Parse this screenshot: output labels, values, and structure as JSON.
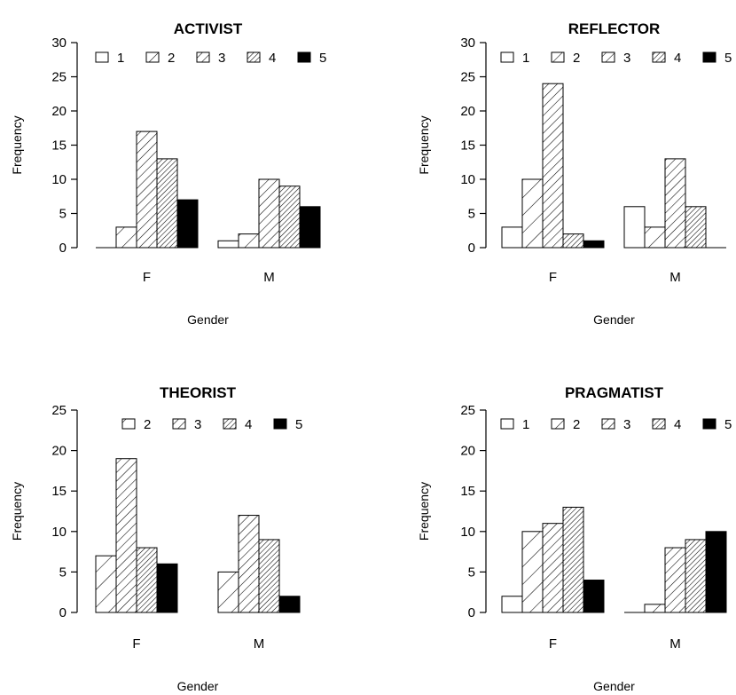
{
  "chart_data": [
    {
      "type": "bar",
      "title": "ACTIVIST",
      "xlabel": "Gender",
      "ylabel": "Frequency",
      "categories": [
        "F",
        "M"
      ],
      "ylim": [
        0,
        30
      ],
      "yticks": [
        0,
        5,
        10,
        15,
        20,
        25,
        30
      ],
      "legend_position": "top",
      "series": [
        {
          "name": "1",
          "pattern": "open",
          "values": [
            0,
            1
          ]
        },
        {
          "name": "2",
          "pattern": "sparse-hatch",
          "values": [
            3,
            2
          ]
        },
        {
          "name": "3",
          "pattern": "medium-hatch",
          "values": [
            17,
            10
          ]
        },
        {
          "name": "4",
          "pattern": "dense-hatch",
          "values": [
            13,
            9
          ]
        },
        {
          "name": "5",
          "pattern": "solid",
          "values": [
            7,
            6
          ]
        }
      ]
    },
    {
      "type": "bar",
      "title": "REFLECTOR",
      "xlabel": "Gender",
      "ylabel": "Frequency",
      "categories": [
        "F",
        "M"
      ],
      "ylim": [
        0,
        30
      ],
      "yticks": [
        0,
        5,
        10,
        15,
        20,
        25,
        30
      ],
      "legend_position": "top",
      "series": [
        {
          "name": "1",
          "pattern": "open",
          "values": [
            3,
            6
          ]
        },
        {
          "name": "2",
          "pattern": "sparse-hatch",
          "values": [
            10,
            3
          ]
        },
        {
          "name": "3",
          "pattern": "medium-hatch",
          "values": [
            24,
            13
          ]
        },
        {
          "name": "4",
          "pattern": "dense-hatch",
          "values": [
            2,
            6
          ]
        },
        {
          "name": "5",
          "pattern": "solid",
          "values": [
            1,
            0
          ]
        }
      ]
    },
    {
      "type": "bar",
      "title": "THEORIST",
      "xlabel": "Gender",
      "ylabel": "Frequency",
      "categories": [
        "F",
        "M"
      ],
      "ylim": [
        0,
        25
      ],
      "yticks": [
        0,
        5,
        10,
        15,
        20,
        25
      ],
      "legend_position": "top",
      "series": [
        {
          "name": "2",
          "pattern": "sparse-hatch",
          "values": [
            7,
            5
          ]
        },
        {
          "name": "3",
          "pattern": "medium-hatch",
          "values": [
            19,
            12
          ]
        },
        {
          "name": "4",
          "pattern": "dense-hatch",
          "values": [
            8,
            9
          ]
        },
        {
          "name": "5",
          "pattern": "solid",
          "values": [
            6,
            2
          ]
        }
      ]
    },
    {
      "type": "bar",
      "title": "PRAGMATIST",
      "xlabel": "Gender",
      "ylabel": "Frequency",
      "categories": [
        "F",
        "M"
      ],
      "ylim": [
        0,
        25
      ],
      "yticks": [
        0,
        5,
        10,
        15,
        20,
        25
      ],
      "legend_position": "top",
      "series": [
        {
          "name": "1",
          "pattern": "open",
          "values": [
            2,
            0
          ]
        },
        {
          "name": "2",
          "pattern": "sparse-hatch",
          "values": [
            10,
            1
          ]
        },
        {
          "name": "3",
          "pattern": "medium-hatch",
          "values": [
            11,
            8
          ]
        },
        {
          "name": "4",
          "pattern": "dense-hatch",
          "values": [
            13,
            9
          ]
        },
        {
          "name": "5",
          "pattern": "solid",
          "values": [
            4,
            10
          ]
        }
      ]
    }
  ]
}
